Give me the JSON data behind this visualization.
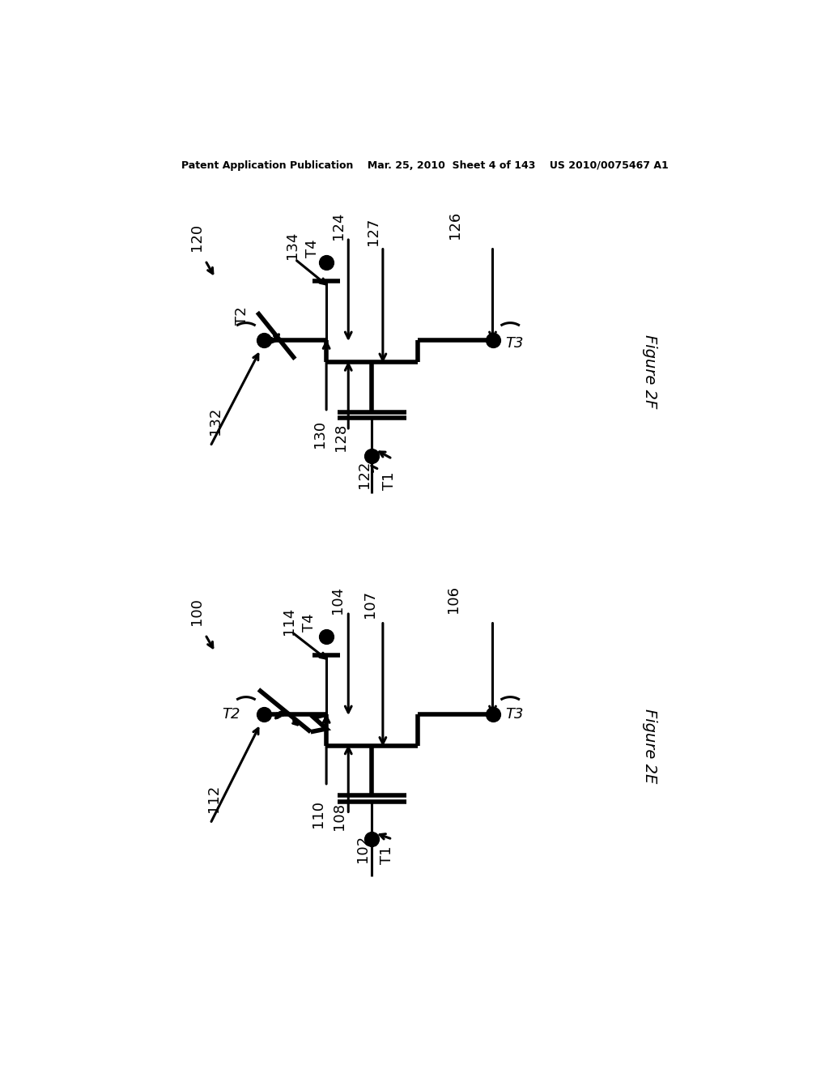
{
  "bg_color": "#ffffff",
  "line_color": "#000000",
  "header_text": "Patent Application Publication    Mar. 25, 2010  Sheet 4 of 143    US 2010/0075467 A1",
  "fig2f_label": "Figure 2F",
  "fig2e_label": "Figure 2E",
  "lw": 2.2,
  "lw_thick": 4.0,
  "dot_size": 55
}
